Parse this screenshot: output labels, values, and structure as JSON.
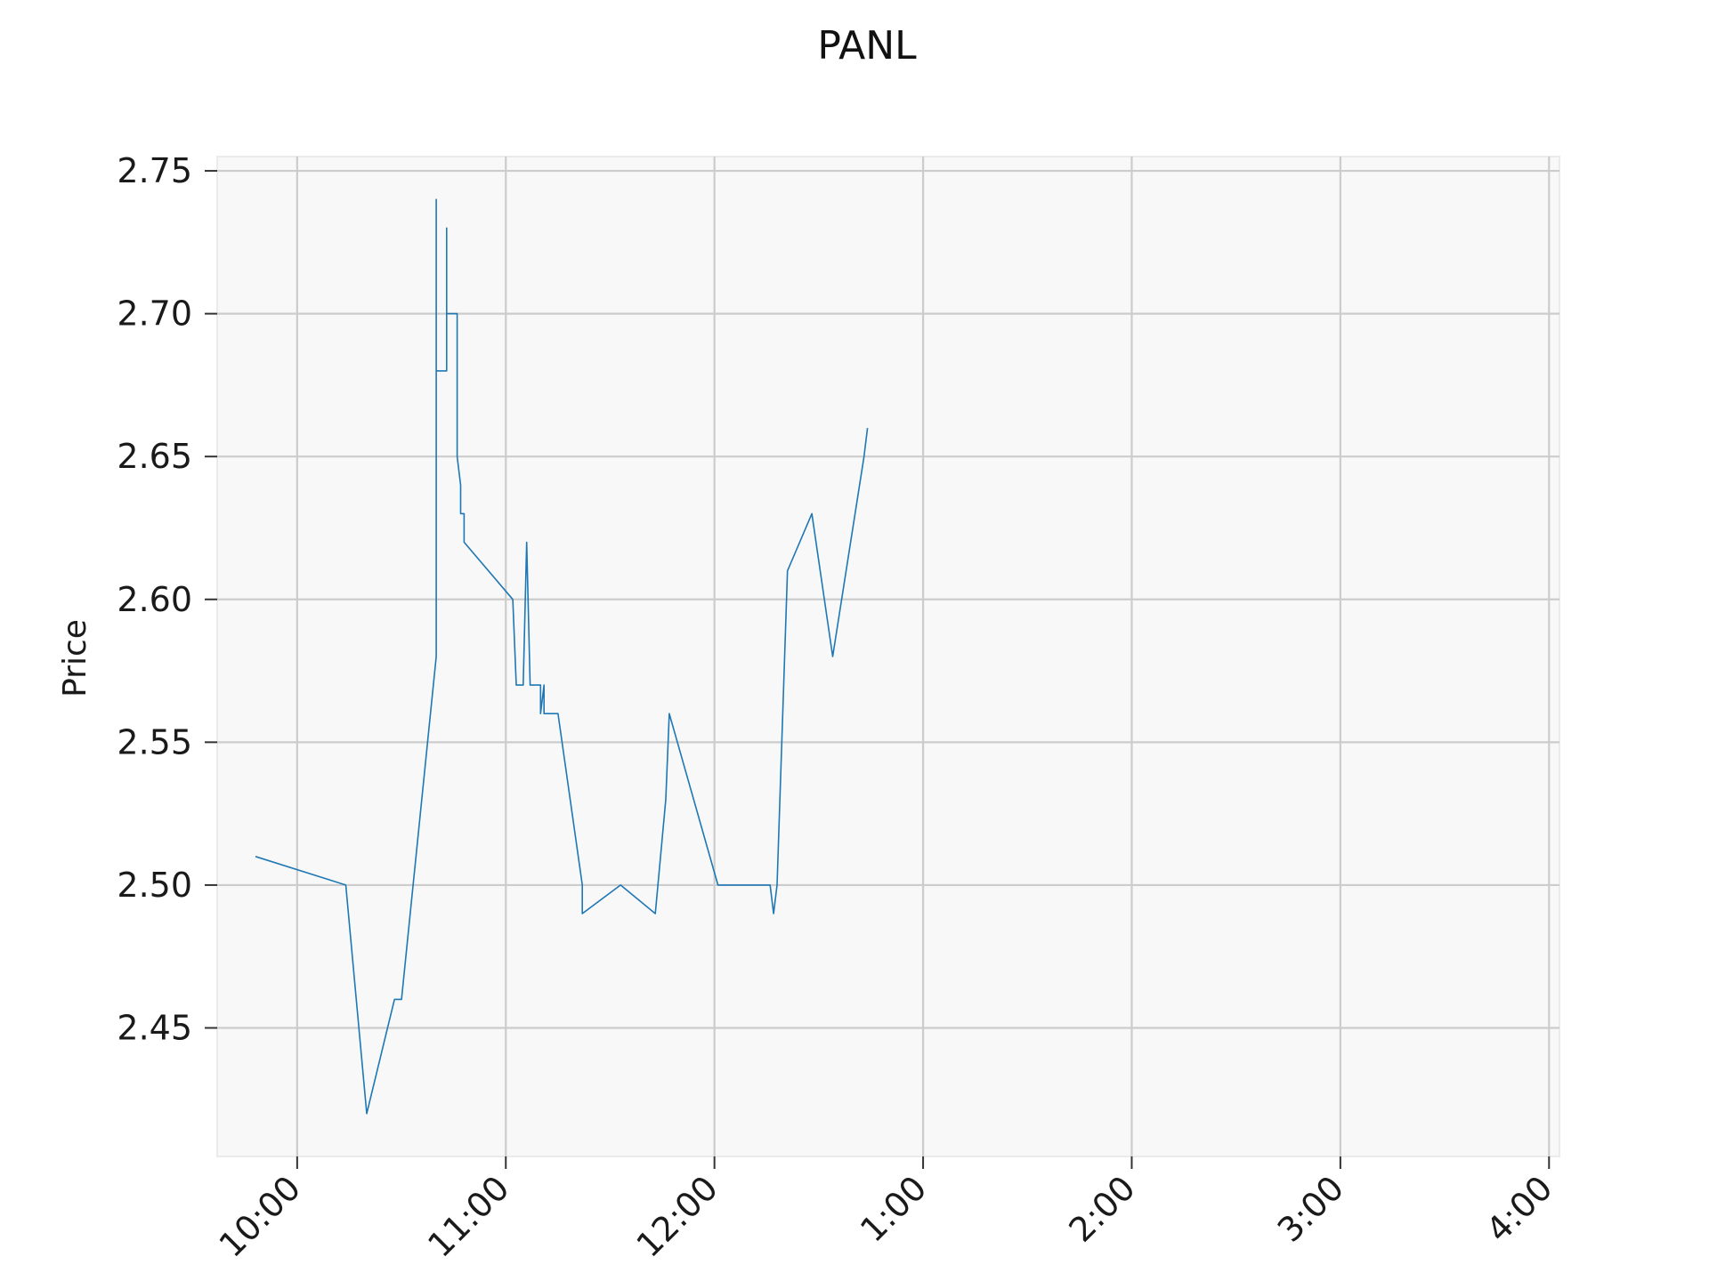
{
  "chart_data": {
    "type": "line",
    "title": "PANL",
    "xlabel": "",
    "ylabel": "Price",
    "x_ticks": [
      "10:00",
      "11:00",
      "12:00",
      "1:00",
      "2:00",
      "3:00",
      "4:00"
    ],
    "y_ticks": [
      "2.45",
      "2.50",
      "2.55",
      "2.60",
      "2.65",
      "2.70",
      "2.75"
    ],
    "xlim": [
      "9:37",
      "4:03"
    ],
    "ylim": [
      2.405,
      2.755
    ],
    "grid": true,
    "background": "#f8f8f8",
    "grid_color": "#cccccc",
    "line_color": "#1f77b4",
    "series": [
      {
        "x": [
          "9:48",
          "10:14",
          "10:20",
          "10:28",
          "10:30",
          "10:40",
          "10:40",
          "10:40",
          "10:43",
          "10:43",
          "10:43",
          "10:43",
          "10:44",
          "10:44",
          "10:45",
          "10:46",
          "10:46",
          "10:46",
          "10:46",
          "10:46",
          "10:47",
          "10:47",
          "10:48",
          "10:48",
          "10:48",
          "11:02",
          "11:03",
          "11:05",
          "11:06",
          "11:07",
          "11:07",
          "11:10",
          "11:10",
          "11:11",
          "11:11",
          "11:11",
          "11:14",
          "11:14",
          "11:15",
          "11:22",
          "11:22",
          "11:33",
          "11:43",
          "11:43",
          "11:46",
          "11:47",
          "12:01",
          "12:01",
          "12:04",
          "12:16",
          "12:17",
          "12:17",
          "12:18",
          "12:21",
          "12:28",
          "12:28",
          "12:34",
          "12:43",
          "12:44"
        ],
        "y": [
          2.51,
          2.5,
          2.42,
          2.46,
          2.46,
          2.58,
          2.74,
          2.68,
          2.68,
          2.7,
          2.73,
          2.7,
          2.7,
          2.7,
          2.7,
          2.7,
          2.68,
          2.67,
          2.65,
          2.65,
          2.64,
          2.63,
          2.63,
          2.62,
          2.62,
          2.6,
          2.57,
          2.57,
          2.62,
          2.57,
          2.57,
          2.57,
          2.56,
          2.57,
          2.57,
          2.56,
          2.56,
          2.56,
          2.56,
          2.5,
          2.49,
          2.5,
          2.49,
          2.49,
          2.53,
          2.56,
          2.5,
          2.5,
          2.5,
          2.5,
          2.49,
          2.49,
          2.5,
          2.61,
          2.63,
          2.63,
          2.58,
          2.65,
          2.66
        ]
      }
    ]
  }
}
